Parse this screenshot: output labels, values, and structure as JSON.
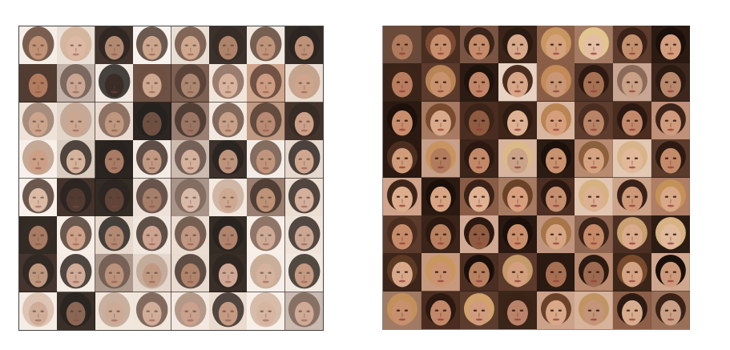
{
  "panels": [
    {
      "id": "generated",
      "cols": 8,
      "rows": 8,
      "bg": [
        "#f4ede8",
        "#e9ddd3",
        "#2a1a14",
        "#f7f3ef",
        "#e6dbd0",
        "#231611",
        "#f0e6dd",
        "#1b110c",
        "#3a2418",
        "#b9a8a0",
        "#f1e8e2",
        "#5a3c2f",
        "#6b4c3c",
        "#efe3d9",
        "#c89b80",
        "#e8dace",
        "#ede1d6",
        "#dfd2c7",
        "#e7d8cc",
        "#0f0906",
        "#8c6e60",
        "#efe6de",
        "#b88c74",
        "#2b1a12",
        "#f6efea",
        "#d7c6ba",
        "#0e0806",
        "#f2e9e3",
        "#c6b3a7",
        "#231612",
        "#f3ece6",
        "#e3d4c9",
        "#f7f0ea",
        "#2a1912",
        "#171009",
        "#ebdfd6",
        "#9d877c",
        "#f2e7de",
        "#8d6f60",
        "#eadccf",
        "#170e0a",
        "#f5ede6",
        "#e4d5c9",
        "#f0e5dc",
        "#e9dace",
        "#1a100b",
        "#f6eee8",
        "#eee2d8",
        "#2c1b14",
        "#f4ebe4",
        "#a18b7f",
        "#e2d2c6",
        "#e6d8cc",
        "#1e130d",
        "#f5ede8",
        "#f0e6de",
        "#f3ebe4",
        "#20140e",
        "#f1e5da",
        "#efe4da",
        "#f2e8e0",
        "#e8d8cb",
        "#f6efe9",
        "#c3b2a8"
      ],
      "skin": [
        "#b88466",
        "#d9b09a",
        "#a77b60",
        "#c69a7e",
        "#c89c80",
        "#a27458",
        "#b8876a",
        "#b48468",
        "#a56a4b",
        "#c29a86",
        "#1f120c",
        "#c79c82",
        "#a0775f",
        "#d3ab94",
        "#c58f72",
        "#c89a7f",
        "#c4997e",
        "#c49b84",
        "#b78a70",
        "#5a3a2a",
        "#8d6350",
        "#c1957a",
        "#af7c62",
        "#c7957a",
        "#c59378",
        "#d0a990",
        "#9c6a52",
        "#b98d74",
        "#cda891",
        "#b6866b",
        "#b9886d",
        "#c99c82",
        "#d7b29c",
        "#3a2217",
        "#4a2c1e",
        "#9a6e57",
        "#d4b29f",
        "#c89f86",
        "#b68466",
        "#cfa690",
        "#9b6a51",
        "#c6957a",
        "#a87a62",
        "#c79883",
        "#b98a72",
        "#a4735a",
        "#c8a08a",
        "#c49b86",
        "#b68a70",
        "#caa18b",
        "#b2846b",
        "#b88d74",
        "#a57459",
        "#c89e88",
        "#d0a993",
        "#bd8d74",
        "#caa38d",
        "#7a5240",
        "#c7a08a",
        "#cba48f",
        "#c29680",
        "#bd8e75",
        "#d1ac97",
        "#c9a08a"
      ],
      "hair": [
        "#4e2c1c",
        "#c9a488",
        "#120b07",
        "#3b2419",
        "#5a3a2b",
        "#1b100b",
        "#4a2d20",
        "#0e0805",
        "#3c2218",
        "#5b463c",
        "#0a0604",
        "#5c3a2c",
        "#3d271d",
        "#7a5847",
        "#4b2c1f",
        "#b58d73",
        "#8b6d5d",
        "#b7967f",
        "#6b4a3a",
        "#060302",
        "#2b1a12",
        "#5a3c2e",
        "#3b2419",
        "#1a100a",
        "#b48f78",
        "#1a0f0a",
        "#0b0604",
        "#2a1811",
        "#4f3a30",
        "#0b0605",
        "#5d3f31",
        "#140c08",
        "#3a2419",
        "#0b0604",
        "#0e0805",
        "#3a2219",
        "#6d5246",
        "#c3a58f",
        "#2a1a12",
        "#1a0e09",
        "#1b0f0a",
        "#3a2219",
        "#0c0705",
        "#2a1a12",
        "#4a3024",
        "#0a0503",
        "#6b4b3b",
        "#1b0f0a",
        "#120a06",
        "#150c08",
        "#5a4236",
        "#b59a87",
        "#2a1a12",
        "#130b07",
        "#b8977f",
        "#1b1009",
        "#d3b6a2",
        "#0b0604",
        "#b99b86",
        "#5b3f31",
        "#9e7d69",
        "#1b100b",
        "#caa993",
        "#6a5044"
      ]
    },
    {
      "id": "real",
      "cols": 8,
      "rows": 8,
      "bg": [
        "#6a4a3a",
        "#4a2e22",
        "#7a5443",
        "#3b2419",
        "#8b5e48",
        "#a47a62",
        "#5e3c2d",
        "#2a1a12",
        "#3a2419",
        "#5c3a2c",
        "#2c1b13",
        "#e8d2c2",
        "#8a5e46",
        "#4e3326",
        "#c8a693",
        "#3d271c",
        "#2b1a12",
        "#a87a62",
        "#4a2d20",
        "#3e2519",
        "#d8b6a0",
        "#5e3c2e",
        "#4a2d1f",
        "#c09078",
        "#2a1811",
        "#c7a08a",
        "#3b2419",
        "#d6b49e",
        "#2c1b13",
        "#b88a70",
        "#e3c8b4",
        "#5a3a2b",
        "#d0a38a",
        "#2a1a12",
        "#8a5c46",
        "#a77a62",
        "#4c2f22",
        "#e2c6b2",
        "#cda38a",
        "#b07e64",
        "#5c3b2c",
        "#3a2419",
        "#d2a992",
        "#2a1912",
        "#c09580",
        "#8d6450",
        "#4b2f22",
        "#2c1b13",
        "#3c251a",
        "#c79a80",
        "#4a2e21",
        "#5c3a2b",
        "#2a1a12",
        "#b98a70",
        "#3b2519",
        "#cfa78f",
        "#a17a64",
        "#4a2d20",
        "#5b3c2d",
        "#3a2519",
        "#cca28a",
        "#d7b39b",
        "#8c5e48",
        "#9a6f58"
      ],
      "skin": [
        "#b07a5c",
        "#c88f6e",
        "#c48c6a",
        "#d6a98a",
        "#d5a27e",
        "#e4bfa3",
        "#c38f6c",
        "#d29e7e",
        "#b87d5e",
        "#c9926f",
        "#c08566",
        "#d7a687",
        "#c99676",
        "#a67052",
        "#caa086",
        "#b8886b",
        "#c88d6c",
        "#d9aa8a",
        "#8e5a40",
        "#ddb191",
        "#d79e7b",
        "#b98366",
        "#c1896a",
        "#cf9b7c",
        "#d09c7a",
        "#b17b5d",
        "#c28868",
        "#caa288",
        "#c8926f",
        "#d6a382",
        "#e2b89a",
        "#c48b6a",
        "#ddae8e",
        "#d8a584",
        "#e0b293",
        "#d79f7e",
        "#c58e6e",
        "#dcb092",
        "#cf9877",
        "#d9a888",
        "#c68c6a",
        "#b8805f",
        "#8f5c42",
        "#c98f6d",
        "#d6a584",
        "#c68a69",
        "#d9aa8b",
        "#e1b99c",
        "#d7a98a",
        "#cc9372",
        "#b7805f",
        "#d49f7e",
        "#a66f52",
        "#9d6a4f",
        "#d4a383",
        "#cc9a7a",
        "#c7906f",
        "#c18869",
        "#d09c7d",
        "#b9836a",
        "#d8a888",
        "#c49578",
        "#d8ac8e",
        "#caa086"
      ],
      "hair": [
        "#6b4a39",
        "#7a4a33",
        "#3b2419",
        "#2a1a12",
        "#c8965f",
        "#e2c58f",
        "#3a2218",
        "#1a0f0a",
        "#3d2418",
        "#b88454",
        "#1e120c",
        "#4b2e20",
        "#c48a58",
        "#2c1a12",
        "#8b6a5a",
        "#2a1a12",
        "#1b100b",
        "#7a4a2f",
        "#3a2317",
        "#2e1c13",
        "#b98552",
        "#4a2d20",
        "#2a1811",
        "#3c2419",
        "#4b2e20",
        "#c8935e",
        "#2a1811",
        "#dbb989",
        "#1b100b",
        "#8c5f3d",
        "#d7b489",
        "#2c1a12",
        "#3e2519",
        "#1a0f0a",
        "#3a2217",
        "#6a4228",
        "#2a1811",
        "#d6b283",
        "#3a2219",
        "#c49258",
        "#4a2d1f",
        "#2a1811",
        "#2a1811",
        "#1a0f0a",
        "#a87548",
        "#3b2419",
        "#caa070",
        "#d7b283",
        "#5c3922",
        "#c8975e",
        "#1a0f0a",
        "#c49a6a",
        "#2a1811",
        "#2a1a12",
        "#7a4a2d",
        "#1a100b",
        "#c2905a",
        "#2a1811",
        "#d1a26b",
        "#3a2217",
        "#6a4229",
        "#c19463",
        "#2c1b13",
        "#3a2219"
      ]
    }
  ]
}
